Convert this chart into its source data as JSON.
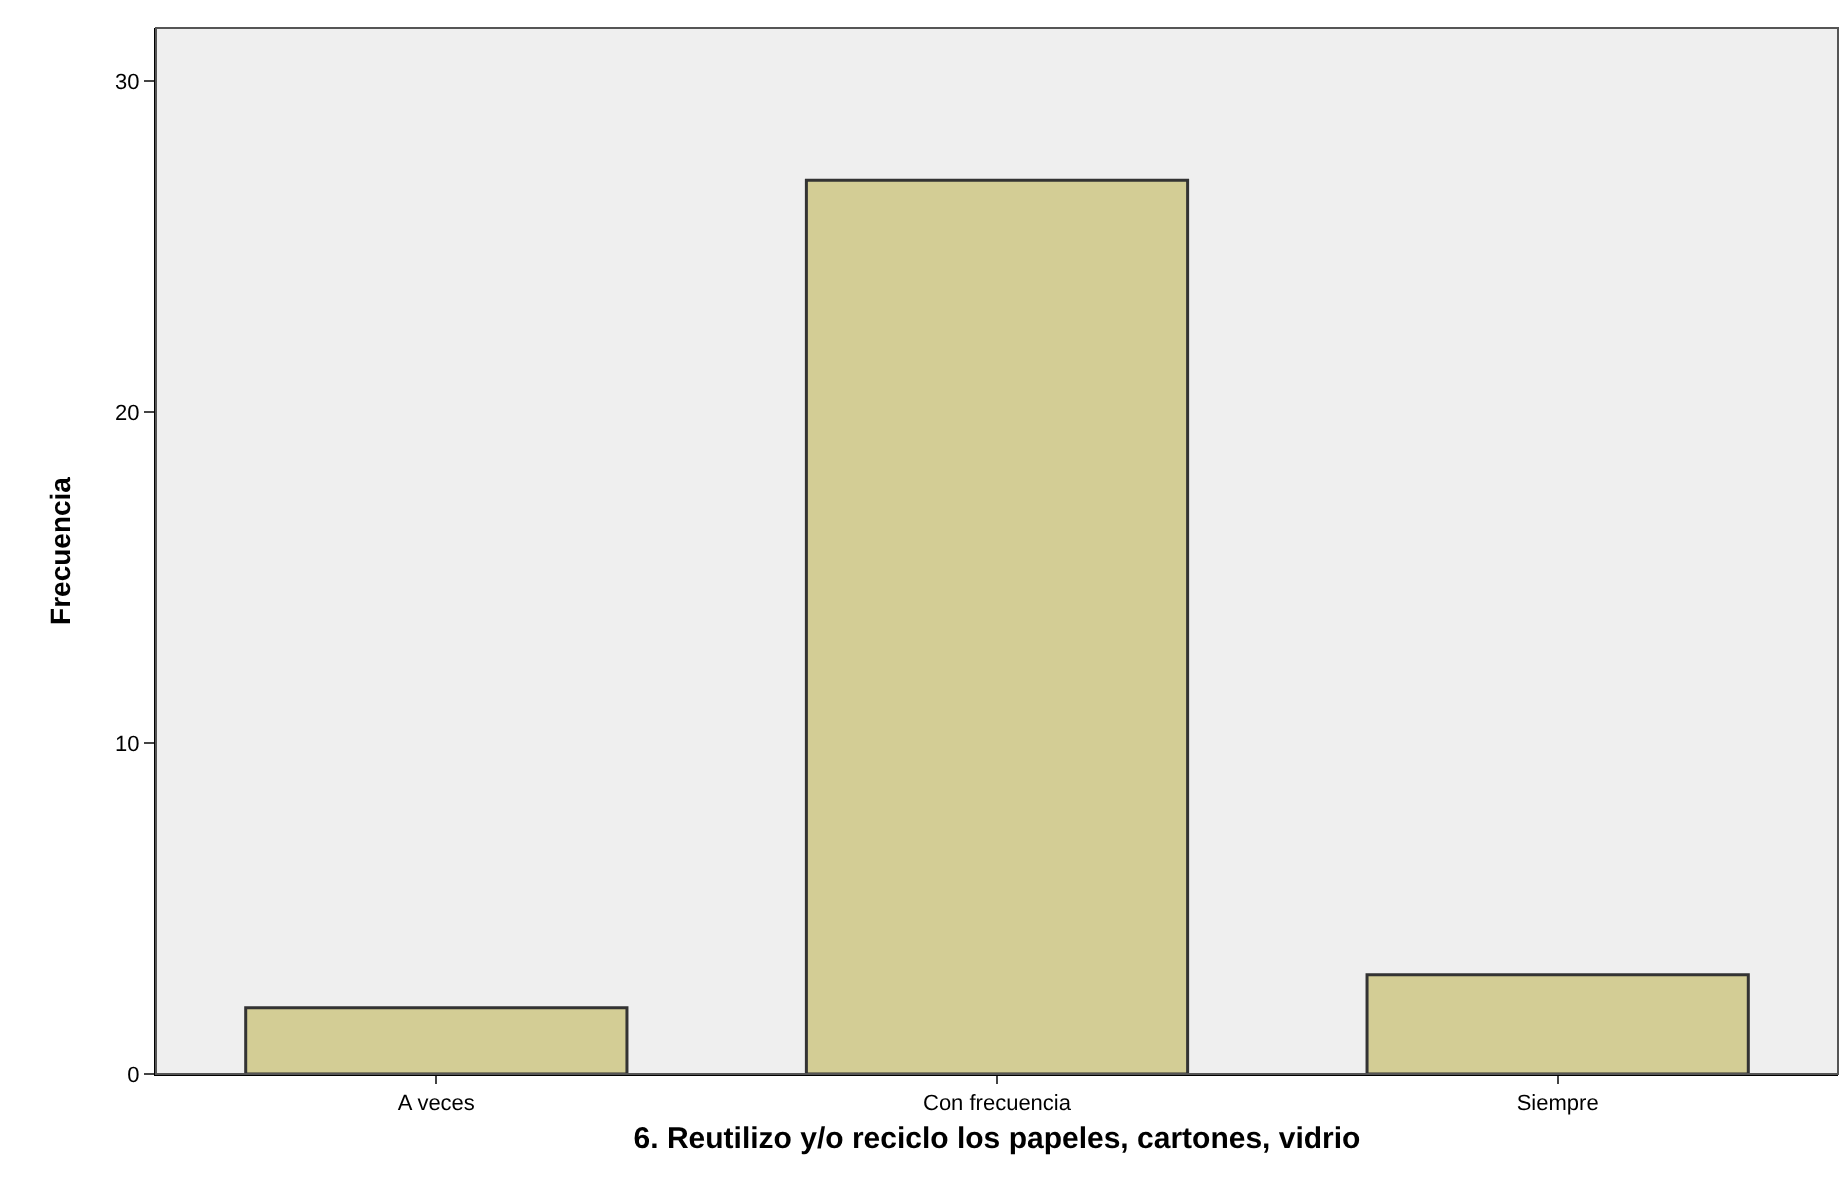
{
  "chart_data": {
    "type": "bar",
    "xlabel": "6. Reutilizo y/o reciclo los papeles, cartones, vidrio",
    "ylabel": "Frecuencia",
    "categories": [
      "A veces",
      "Con frecuencia",
      "Siempre"
    ],
    "values": [
      2,
      27,
      3
    ],
    "color": "#d3cd95",
    "ylim": [
      0,
      31.6
    ],
    "yticks": [
      0,
      10,
      20,
      30
    ],
    "grid": false
  }
}
